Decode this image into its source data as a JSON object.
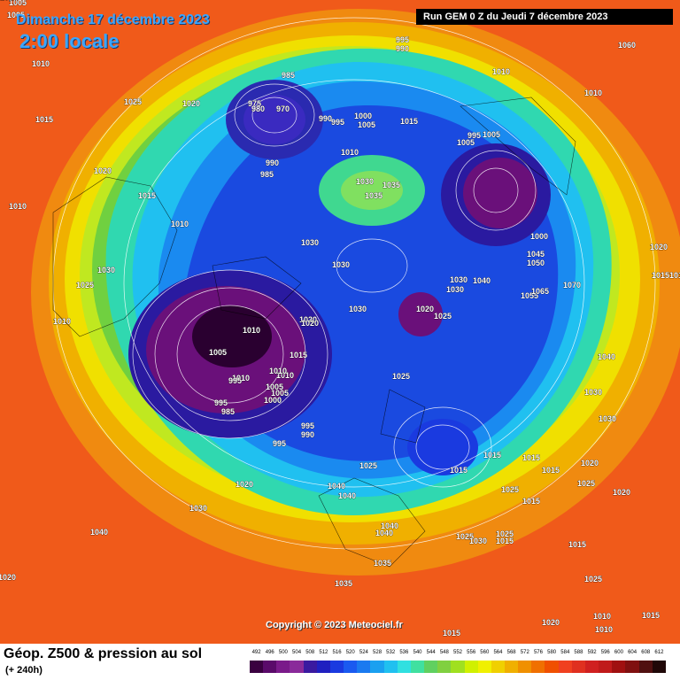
{
  "header": {
    "date": "Dimanche 17 décembre 2023",
    "time": "2:00 locale",
    "run": "Run GEM 0 Z du Jeudi 7 décembre 2023"
  },
  "footer": {
    "product": "Géop. Z500 & pression au sol",
    "lead": "(+ 240h)",
    "copyright": "Copyright © 2023 Meteociel.fr"
  },
  "scale": {
    "values": [
      "492",
      "496",
      "500",
      "504",
      "508",
      "512",
      "516",
      "520",
      "524",
      "528",
      "532",
      "536",
      "540",
      "544",
      "548",
      "552",
      "556",
      "560",
      "564",
      "568",
      "572",
      "576",
      "580",
      "584",
      "588",
      "592",
      "596",
      "600",
      "604",
      "608",
      "612"
    ],
    "colors": [
      "#3a0040",
      "#5a0a6a",
      "#7a1a8a",
      "#8a2a9a",
      "#3a1aa0",
      "#2020c0",
      "#1a3ae0",
      "#1a5af0",
      "#1a7af0",
      "#1aa0f0",
      "#20c0f0",
      "#30e0e0",
      "#40e0a0",
      "#60d060",
      "#80d040",
      "#a0e020",
      "#d0f000",
      "#f0f000",
      "#f0d000",
      "#f0b000",
      "#f09000",
      "#f07000",
      "#f05000",
      "#f04020",
      "#e03020",
      "#d02020",
      "#c01a1a",
      "#a01010",
      "#801010",
      "#501010",
      "#200808"
    ]
  },
  "pressure_labels": [
    "1005",
    "1005",
    "1010",
    "1025",
    "1020",
    "1015",
    "995",
    "990",
    "985",
    "975",
    "970",
    "980",
    "990",
    "995",
    "1000",
    "1005",
    "1015",
    "1010",
    "1010",
    "1010",
    "990",
    "985",
    "1020",
    "1015",
    "1030",
    "1035",
    "1035",
    "1030",
    "1010",
    "1010",
    "1005",
    "995",
    "1005",
    "1000",
    "1045",
    "1050",
    "1055",
    "1065",
    "1070",
    "1060",
    "1015",
    "1010",
    "1025",
    "1030",
    "1015",
    "1020",
    "1010",
    "1030",
    "1020",
    "1025",
    "1030",
    "1030",
    "1040",
    "1030",
    "1020",
    "1025",
    "1010",
    "1020",
    "1015",
    "1010",
    "1005",
    "1005",
    "1010",
    "995",
    "995",
    "985",
    "1005",
    "1000",
    "995",
    "990",
    "995",
    "1025",
    "1020",
    "1040",
    "1040",
    "1040",
    "1040",
    "1040",
    "1030",
    "1030",
    "1020",
    "1015",
    "1015",
    "1015",
    "1015",
    "1025",
    "1015",
    "1020",
    "1025",
    "1015",
    "1025",
    "1030",
    "1040",
    "1035",
    "1035",
    "1030",
    "1025",
    "1015",
    "1015",
    "1020",
    "1025",
    "1020",
    "1010",
    "1015",
    "1010",
    "1015",
    "1010"
  ],
  "colors": {
    "ocean_outer": "#e8401a",
    "background_outer": "#f05a1a"
  }
}
